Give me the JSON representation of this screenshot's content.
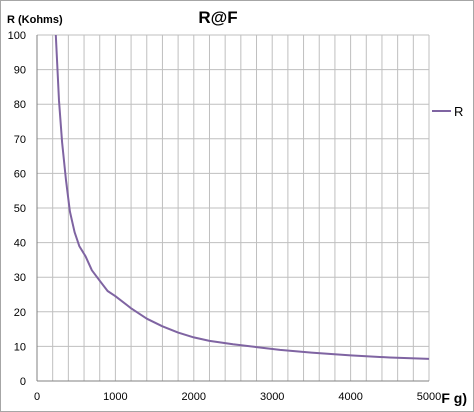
{
  "chart_data": {
    "type": "line",
    "title": "R@F",
    "xlabel": "F g)",
    "ylabel": "R (Kohms)",
    "xlim": [
      0,
      5000
    ],
    "ylim": [
      0,
      100
    ],
    "x_ticks": [
      0,
      1000,
      2000,
      3000,
      4000,
      5000
    ],
    "y_ticks": [
      0,
      10,
      20,
      30,
      40,
      50,
      60,
      70,
      80,
      90,
      100
    ],
    "grid": true,
    "legend_position": "right",
    "series": [
      {
        "name": "R",
        "color": "#7f64a2",
        "x": [
          240,
          280,
          320,
          370,
          420,
          480,
          540,
          620,
          700,
          800,
          900,
          1000,
          1200,
          1400,
          1600,
          1800,
          2000,
          2200,
          2500,
          2800,
          3100,
          3500,
          4000,
          4500,
          5000
        ],
        "y": [
          100,
          81,
          69,
          58,
          49,
          43,
          39,
          36,
          32,
          29,
          26,
          24.5,
          21,
          18,
          15.8,
          14,
          12.6,
          11.6,
          10.6,
          9.8,
          9,
          8.2,
          7.4,
          6.8,
          6.4
        ]
      }
    ]
  },
  "colors": {
    "grid": "#bfbfbf",
    "axis": "#808080",
    "plot_background": "#ffffff"
  }
}
